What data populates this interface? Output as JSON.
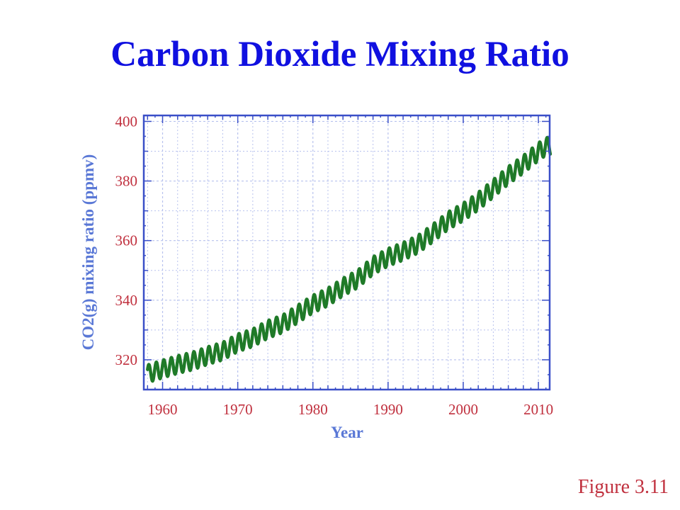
{
  "slide": {
    "title": "Carbon Dioxide Mixing Ratio",
    "figure_label": "Figure 3.11"
  },
  "colors": {
    "title": "#1010e0",
    "axis_title": "#5a78d6",
    "tick_label": "#c0303e",
    "series": "#1f7a28",
    "frame": "#3a4fc8",
    "grid": "#b8c2ee",
    "figure_label": "#c0303e"
  },
  "chart_data": {
    "type": "line",
    "xlabel": "Year",
    "ylabel": "CO2(g) mixing ratio (ppmv)",
    "xlim": [
      1957.5,
      2011.5
    ],
    "ylim": [
      310,
      402
    ],
    "xticks": [
      1960,
      1970,
      1980,
      1990,
      2000,
      2010
    ],
    "xtick_labels": [
      "1960",
      "1970",
      "1980",
      "1990",
      "2000",
      "2010"
    ],
    "yticks": [
      320,
      340,
      360,
      380,
      400
    ],
    "ytick_labels": [
      "320",
      "340",
      "360",
      "380",
      "400"
    ],
    "grid": true,
    "seasonal_amplitude_ppmv": 6,
    "series": [
      {
        "x": [
          1958,
          1960,
          1962,
          1964,
          1966,
          1968,
          1970,
          1972,
          1974,
          1976,
          1978,
          1980,
          1982,
          1984,
          1986,
          1988,
          1990,
          1992,
          1994,
          1996,
          1998,
          2000,
          2002,
          2004,
          2006,
          2008,
          2010,
          2011
        ],
        "y": [
          315.3,
          316.9,
          318.4,
          319.6,
          321.4,
          322.9,
          325.7,
          327.4,
          330.2,
          332.1,
          335.4,
          338.7,
          341.1,
          344.4,
          347.2,
          351.6,
          354.4,
          356.4,
          358.8,
          362.6,
          366.7,
          369.6,
          373.2,
          377.5,
          381.9,
          385.6,
          389.8,
          391.6
        ]
      }
    ]
  }
}
